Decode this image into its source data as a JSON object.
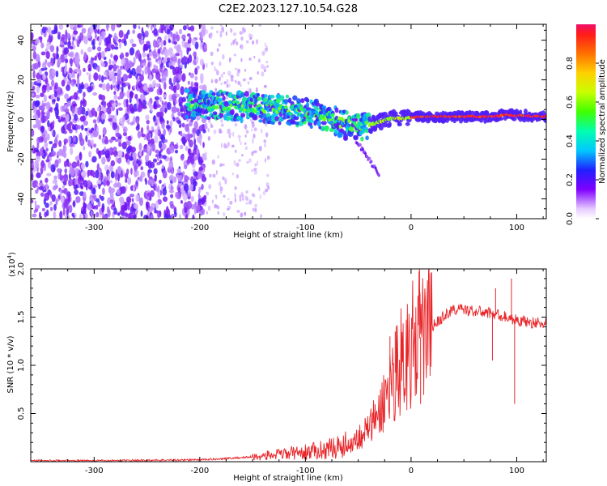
{
  "title": "C2E2.2023.127.10.54.G28",
  "chart_data": [
    {
      "type": "heatmap",
      "xlabel": "Height of straight line (km)",
      "ylabel": "Frequency (Hz)",
      "xlim": [
        -360,
        128
      ],
      "ylim": [
        -50,
        48
      ],
      "xticks": [
        -300,
        -200,
        -100,
        0,
        100
      ],
      "xtick_labels": [
        "-300",
        "-200",
        "-100",
        "0",
        "100"
      ],
      "yticks": [
        -40,
        -20,
        0,
        20,
        40
      ],
      "ytick_labels": [
        "-40",
        "-20",
        "0",
        "20",
        "40"
      ],
      "ridge_x": [
        -210,
        -180,
        -150,
        -120,
        -100,
        -80,
        -60,
        -40,
        -30,
        -20,
        -10,
        0,
        20,
        40,
        60,
        80,
        90,
        100,
        128
      ],
      "ridge_y": [
        8,
        7,
        6,
        5,
        3.5,
        1.5,
        -3,
        -3,
        -1,
        0.5,
        0.5,
        1,
        1.5,
        1.5,
        1.5,
        1.5,
        2.5,
        2,
        1.5
      ],
      "branch_x": [
        -50,
        -45,
        -40,
        -35,
        -30
      ],
      "branch_y": [
        -12,
        -16,
        -20,
        -24,
        -28
      ],
      "colorbar": {
        "label": "Normalized spectral amplitude",
        "ticks": [
          0.0,
          0.2,
          0.4,
          0.6,
          0.8
        ],
        "tick_labels": [
          "0.0",
          "0.2",
          "0.4",
          "0.6",
          "0.8"
        ],
        "range": [
          0,
          1
        ]
      }
    },
    {
      "type": "line",
      "xlabel": "Height of straight line (km)",
      "ylabel": "SNR (10 * v/v)",
      "y_multiplier": "(x10",
      "y_multiplier_exp": "4",
      "y_multiplier_close": ")",
      "xlim": [
        -360,
        128
      ],
      "ylim": [
        0,
        2.0
      ],
      "xticks": [
        -300,
        -200,
        -100,
        0,
        100
      ],
      "xtick_labels": [
        "-300",
        "-200",
        "-100",
        "0",
        "100"
      ],
      "yticks": [
        0.5,
        1.0,
        1.5,
        2.0
      ],
      "ytick_labels": [
        "0.5",
        "1.0",
        "1.5",
        "2.0"
      ],
      "color": "#e8262a",
      "series": [
        {
          "x": [
            -360,
            -300,
            -250,
            -200,
            -180,
            -150,
            -120,
            -100,
            -80,
            -60,
            -50,
            -40,
            -30,
            -20,
            -10,
            0,
            10,
            20,
            30,
            40,
            50,
            60,
            70,
            80,
            90,
            100,
            110,
            128
          ],
          "values": [
            0.01,
            0.01,
            0.015,
            0.02,
            0.03,
            0.05,
            0.08,
            0.1,
            0.13,
            0.18,
            0.25,
            0.35,
            0.5,
            0.8,
            1.05,
            1.2,
            1.3,
            1.4,
            1.5,
            1.58,
            1.58,
            1.56,
            1.55,
            1.53,
            1.5,
            1.47,
            1.45,
            1.43
          ]
        }
      ],
      "spikes": [
        {
          "x": 8,
          "value": 2.0
        },
        {
          "x": 9,
          "value": 0.6
        },
        {
          "x": 95,
          "value": 1.9
        },
        {
          "x": 98,
          "value": 0.6
        },
        {
          "x": 80,
          "value": 1.8
        },
        {
          "x": 77,
          "value": 1.05
        },
        {
          "x": -20,
          "value": 1.3
        },
        {
          "x": -15,
          "value": 1.35
        }
      ]
    }
  ]
}
